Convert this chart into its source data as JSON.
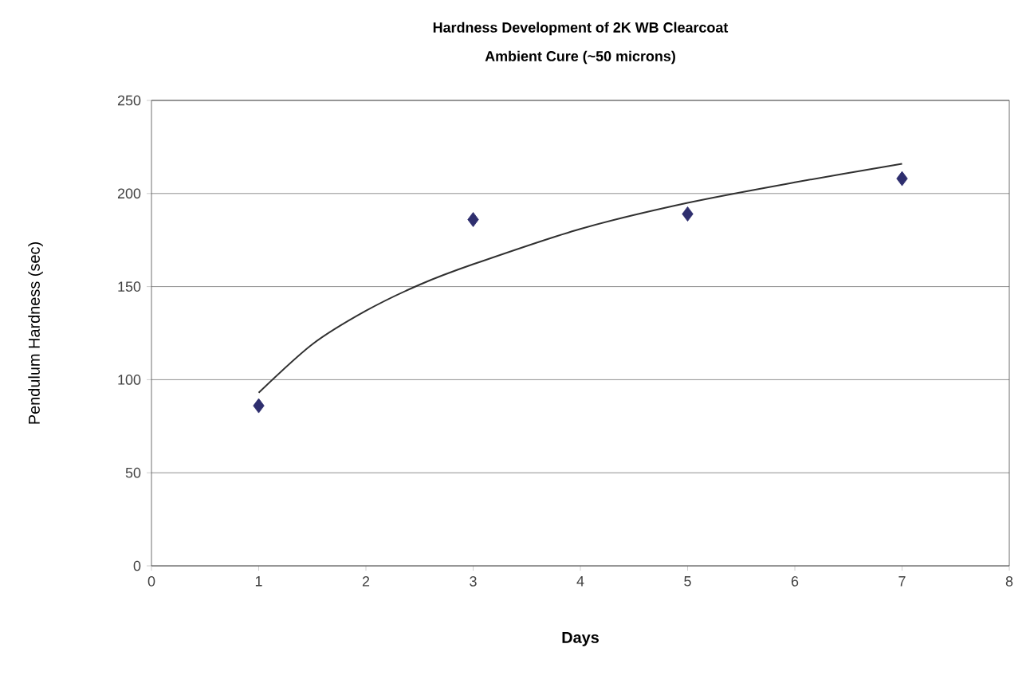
{
  "chart_data": {
    "type": "scatter",
    "title": "Hardness Development of 2K WB Clearcoat",
    "subtitle": "Ambient Cure (~50 microns)",
    "xlabel": "Days",
    "ylabel": "Pendulum Hardness (sec)",
    "xlim": [
      0,
      8
    ],
    "xticks": [
      0,
      1,
      2,
      3,
      4,
      5,
      6,
      7,
      8
    ],
    "ylim": [
      0,
      250
    ],
    "yticks": [
      0,
      50,
      100,
      150,
      200,
      250
    ],
    "grid": "y",
    "marker": "diamond",
    "series": [
      {
        "color": "#2e2e6e",
        "x": [
          1,
          3,
          5,
          7
        ],
        "values": [
          86,
          186,
          189,
          208
        ]
      },
      {
        "type": "line",
        "color": "#303030",
        "line_style": "solid",
        "marker": "none",
        "x": [
          1,
          1.5,
          2,
          2.5,
          3,
          4,
          5,
          6,
          7
        ],
        "values": [
          93,
          119,
          137,
          151,
          162,
          181,
          195,
          206,
          216
        ]
      }
    ]
  }
}
